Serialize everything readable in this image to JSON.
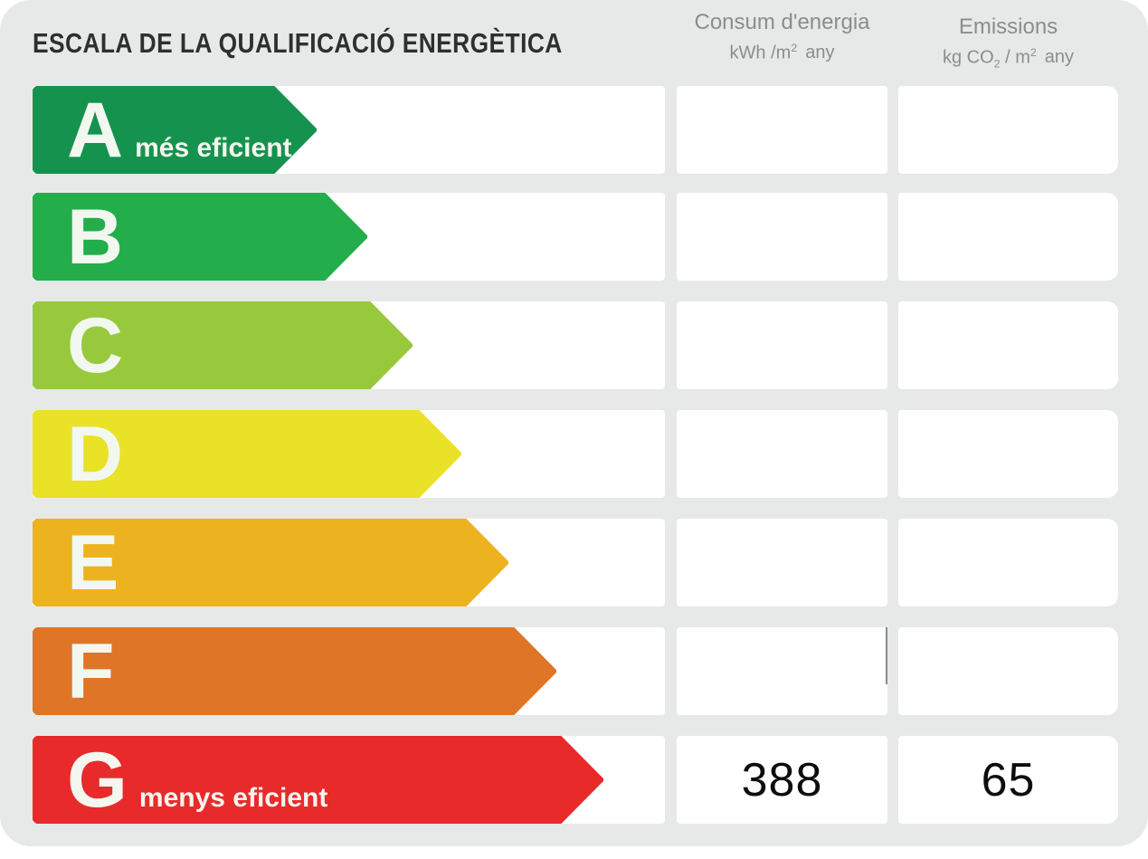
{
  "page": {
    "background": "#ffffff",
    "panel_background": "#E7E9E9"
  },
  "header": {
    "title": "ESCALA DE LA QUALIFICACIÓ ENERGÈTICA",
    "consum": {
      "title": "Consum d'energia",
      "unit_main": "kWh /m",
      "unit_sup": "2",
      "unit_tail": "any"
    },
    "emissions": {
      "title": "Emissions",
      "unit_main": "kg CO",
      "unit_sub": "2",
      "unit_mid": " / m",
      "unit_sup": "2",
      "unit_tail": "any"
    }
  },
  "scale": {
    "rows": [
      {
        "letter": "A",
        "tag": "més eficient",
        "color": "#15934E",
        "arrow_width": 314,
        "consum": "",
        "emissions": ""
      },
      {
        "letter": "B",
        "tag": "",
        "color": "#23AD4B",
        "arrow_width": 370,
        "consum": "",
        "emissions": ""
      },
      {
        "letter": "C",
        "tag": "",
        "color": "#98C93C",
        "arrow_width": 420,
        "consum": "",
        "emissions": ""
      },
      {
        "letter": "D",
        "tag": "",
        "color": "#E9E227",
        "arrow_width": 474,
        "consum": "",
        "emissions": ""
      },
      {
        "letter": "E",
        "tag": "",
        "color": "#EDB220",
        "arrow_width": 526,
        "consum": "",
        "emissions": ""
      },
      {
        "letter": "F",
        "tag": "",
        "color": "#DE7527",
        "arrow_width": 579,
        "consum": "",
        "emissions": ""
      },
      {
        "letter": "G",
        "tag": "menys eficient",
        "color": "#E82A2B",
        "arrow_width": 631,
        "consum": "388",
        "emissions": "65"
      }
    ]
  },
  "chart_data": {
    "type": "table",
    "title": "ESCALA DE LA QUALIFICACIÓ ENERGÈTICA",
    "columns": [
      "Consum d'energia (kWh/m2 any)",
      "Emissions (kg CO2/m2 any)"
    ],
    "ratings": [
      "A",
      "B",
      "C",
      "D",
      "E",
      "F",
      "G"
    ],
    "rating_labels": {
      "A": "més eficient",
      "G": "menys eficient"
    },
    "row_colors": [
      "#15934E",
      "#23AD4B",
      "#98C93C",
      "#E9E227",
      "#EDB220",
      "#DE7527",
      "#E82A2B"
    ],
    "rated_row": "G",
    "values": {
      "consum_kwh_m2_any": 388,
      "emissions_kg_co2_m2_any": 65
    },
    "layout": {
      "bars_increase_downward": true,
      "legend": "off",
      "grid": "off"
    }
  }
}
